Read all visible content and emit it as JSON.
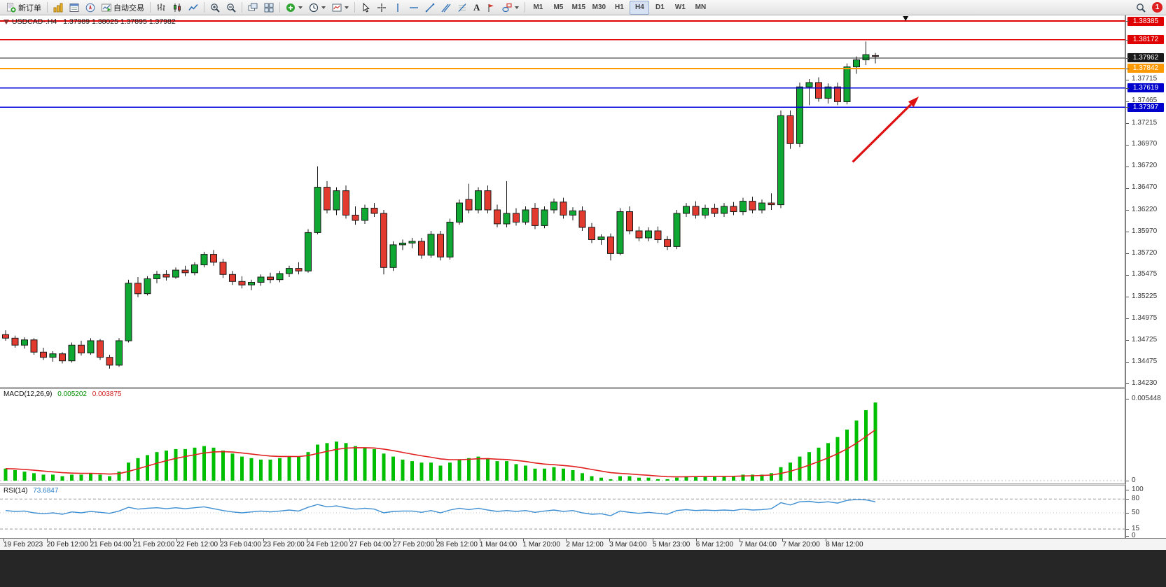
{
  "window": {
    "badge_count": "1"
  },
  "toolbar": {
    "new_order": "新订单",
    "autotrading": "自动交易",
    "text_tool_glyph": "A",
    "timeframes": [
      "M1",
      "M5",
      "M15",
      "M30",
      "H1",
      "H4",
      "D1",
      "W1",
      "MN"
    ],
    "active_timeframe": "H4"
  },
  "colors": {
    "bull": "#0fa832",
    "bear": "#e23a2e",
    "outline": "#1a1a1a",
    "macd_hist": "#00bf00",
    "macd_signal": "#e01f1f",
    "rsi_line": "#3f8fd2",
    "arrow": "#dd1111"
  },
  "chart_data": [
    {
      "type": "candlestick",
      "title": "USDCAD-.H4",
      "ohlc_text": "1.37989 1.38025 1.37895 1.37982",
      "price_axis": {
        "max": 1.3845,
        "min": 1.34191,
        "plain_labels": [
          "1.37715",
          "1.37465",
          "1.37215",
          "1.36970",
          "1.36720",
          "1.36470",
          "1.36220",
          "1.35970",
          "1.35720",
          "1.35475",
          "1.35225",
          "1.34975",
          "1.34725",
          "1.34475",
          "1.34230"
        ]
      },
      "hlines": [
        {
          "price": 1.38385,
          "color": "#e00000",
          "width": 2.2,
          "label": "1.38385",
          "box": "#e00000"
        },
        {
          "price": 1.38172,
          "color": "#e00000",
          "width": 1.4,
          "label": "1.38172",
          "box": "#e00000"
        },
        {
          "price": 1.37962,
          "color": "#222222",
          "width": 1,
          "label": "1.37962",
          "box": "#1a1a1a"
        },
        {
          "price": 1.37842,
          "color": "#ff9900",
          "width": 2,
          "label": "1.37842",
          "box": "#ff9900"
        },
        {
          "price": 1.37619,
          "color": "#0000dd",
          "width": 1.6,
          "label": "1.37619",
          "box": "#0000cc"
        },
        {
          "price": 1.37397,
          "color": "#0000dd",
          "width": 1.6,
          "label": "1.37397",
          "box": "#0000cc"
        }
      ],
      "arrow": {
        "i1": 89.6,
        "p1": 1.3677,
        "i2": 96.6,
        "p2": 1.3752
      },
      "top_marker_index": 95.2,
      "time_labels": [
        "19 Feb 2023",
        "20 Feb 12:00",
        "21 Feb 04:00",
        "21 Feb 20:00",
        "22 Feb 12:00",
        "23 Feb 04:00",
        "23 Feb 20:00",
        "24 Feb 12:00",
        "27 Feb 04:00",
        "27 Feb 20:00",
        "28 Feb 12:00",
        "1 Mar 04:00",
        "1 Mar 20:00",
        "2 Mar 12:00",
        "3 Mar 04:00",
        "5 Mar 23:00",
        "6 Mar 12:00",
        "7 Mar 04:00",
        "7 Mar 20:00",
        "8 Mar 12:00"
      ],
      "candles": [
        [
          1.3479,
          1.3484,
          1.3472,
          1.3475
        ],
        [
          1.3475,
          1.3478,
          1.3464,
          1.3467
        ],
        [
          1.3467,
          1.3476,
          1.3463,
          1.3473
        ],
        [
          1.3473,
          1.3475,
          1.3456,
          1.3459
        ],
        [
          1.3459,
          1.3464,
          1.345,
          1.3453
        ],
        [
          1.3453,
          1.346,
          1.3448,
          1.3457
        ],
        [
          1.3457,
          1.3459,
          1.3446,
          1.3449
        ],
        [
          1.3449,
          1.347,
          1.3447,
          1.3467
        ],
        [
          1.3467,
          1.3472,
          1.3455,
          1.3458
        ],
        [
          1.3458,
          1.3475,
          1.3456,
          1.3472
        ],
        [
          1.3472,
          1.3474,
          1.345,
          1.3453
        ],
        [
          1.3453,
          1.3456,
          1.344,
          1.3444
        ],
        [
          1.3444,
          1.3475,
          1.3442,
          1.3472
        ],
        [
          1.3472,
          1.3542,
          1.347,
          1.3538
        ],
        [
          1.3538,
          1.3545,
          1.3522,
          1.3526
        ],
        [
          1.3526,
          1.3546,
          1.3524,
          1.3543
        ],
        [
          1.3543,
          1.3552,
          1.3538,
          1.3548
        ],
        [
          1.3548,
          1.3553,
          1.3541,
          1.3545
        ],
        [
          1.3545,
          1.3556,
          1.3543,
          1.3553
        ],
        [
          1.3553,
          1.3558,
          1.3546,
          1.355
        ],
        [
          1.355,
          1.3562,
          1.3547,
          1.3559
        ],
        [
          1.3559,
          1.3574,
          1.3556,
          1.3571
        ],
        [
          1.3571,
          1.3576,
          1.3558,
          1.3562
        ],
        [
          1.3562,
          1.3566,
          1.3544,
          1.3548
        ],
        [
          1.3548,
          1.3552,
          1.3536,
          1.354
        ],
        [
          1.354,
          1.3546,
          1.3532,
          1.3536
        ],
        [
          1.3536,
          1.3542,
          1.353,
          1.3539
        ],
        [
          1.3539,
          1.3548,
          1.3535,
          1.3545
        ],
        [
          1.3545,
          1.355,
          1.3538,
          1.3542
        ],
        [
          1.3542,
          1.3552,
          1.3539,
          1.3549
        ],
        [
          1.3549,
          1.3558,
          1.3545,
          1.3555
        ],
        [
          1.3555,
          1.3562,
          1.3548,
          1.3552
        ],
        [
          1.3552,
          1.36,
          1.355,
          1.3596
        ],
        [
          1.3596,
          1.3672,
          1.3594,
          1.3648
        ],
        [
          1.3648,
          1.3655,
          1.3618,
          1.3622
        ],
        [
          1.3622,
          1.3648,
          1.3616,
          1.3644
        ],
        [
          1.3644,
          1.365,
          1.3612,
          1.3616
        ],
        [
          1.3616,
          1.3626,
          1.3605,
          1.361
        ],
        [
          1.361,
          1.3628,
          1.3606,
          1.3624
        ],
        [
          1.3624,
          1.363,
          1.3614,
          1.3618
        ],
        [
          1.3618,
          1.3622,
          1.3548,
          1.3556
        ],
        [
          1.3556,
          1.3586,
          1.3552,
          1.3582
        ],
        [
          1.3582,
          1.3588,
          1.3576,
          1.3584
        ],
        [
          1.3584,
          1.359,
          1.3578,
          1.3586
        ],
        [
          1.3586,
          1.359,
          1.3566,
          1.357
        ],
        [
          1.357,
          1.3598,
          1.3567,
          1.3594
        ],
        [
          1.3594,
          1.3598,
          1.3564,
          1.3568
        ],
        [
          1.3568,
          1.3612,
          1.3565,
          1.3608
        ],
        [
          1.3608,
          1.3634,
          1.3605,
          1.363
        ],
        [
          1.3634,
          1.3652,
          1.3618,
          1.3622
        ],
        [
          1.3622,
          1.3648,
          1.3618,
          1.3644
        ],
        [
          1.3644,
          1.365,
          1.3618,
          1.3622
        ],
        [
          1.3622,
          1.3628,
          1.3602,
          1.3606
        ],
        [
          1.3606,
          1.3655,
          1.3602,
          1.3618
        ],
        [
          1.3618,
          1.3624,
          1.3604,
          1.3608
        ],
        [
          1.3608,
          1.3626,
          1.3605,
          1.3622
        ],
        [
          1.3624,
          1.363,
          1.36,
          1.3604
        ],
        [
          1.3604,
          1.3626,
          1.3601,
          1.3622
        ],
        [
          1.3622,
          1.3635,
          1.3618,
          1.3631
        ],
        [
          1.3631,
          1.3636,
          1.3612,
          1.3616
        ],
        [
          1.3616,
          1.3625,
          1.361,
          1.3621
        ],
        [
          1.3621,
          1.3626,
          1.3598,
          1.3602
        ],
        [
          1.3602,
          1.3607,
          1.3584,
          1.3588
        ],
        [
          1.3588,
          1.3594,
          1.3582,
          1.3591
        ],
        [
          1.3591,
          1.3595,
          1.3564,
          1.3572
        ],
        [
          1.3572,
          1.3624,
          1.357,
          1.362
        ],
        [
          1.362,
          1.3626,
          1.3594,
          1.3598
        ],
        [
          1.3598,
          1.3603,
          1.3586,
          1.359
        ],
        [
          1.359,
          1.3602,
          1.3586,
          1.3598
        ],
        [
          1.3598,
          1.3603,
          1.3584,
          1.3588
        ],
        [
          1.3588,
          1.3592,
          1.3576,
          1.358
        ],
        [
          1.358,
          1.3622,
          1.3577,
          1.3618
        ],
        [
          1.3618,
          1.363,
          1.3614,
          1.3626
        ],
        [
          1.3626,
          1.3632,
          1.3612,
          1.3616
        ],
        [
          1.3616,
          1.3628,
          1.3612,
          1.3624
        ],
        [
          1.3624,
          1.3629,
          1.3614,
          1.3618
        ],
        [
          1.3618,
          1.363,
          1.3614,
          1.3626
        ],
        [
          1.3626,
          1.3631,
          1.3616,
          1.362
        ],
        [
          1.362,
          1.3636,
          1.3616,
          1.3632
        ],
        [
          1.3632,
          1.3637,
          1.3618,
          1.3622
        ],
        [
          1.3622,
          1.3634,
          1.3618,
          1.363
        ],
        [
          1.363,
          1.3641,
          1.3622,
          1.3628
        ],
        [
          1.3628,
          1.3736,
          1.3624,
          1.373
        ],
        [
          1.373,
          1.3736,
          1.3692,
          1.3698
        ],
        [
          1.3698,
          1.3768,
          1.3694,
          1.3763
        ],
        [
          1.3763,
          1.3772,
          1.3742,
          1.3768
        ],
        [
          1.3768,
          1.3774,
          1.3746,
          1.375
        ],
        [
          1.375,
          1.3767,
          1.3744,
          1.3763
        ],
        [
          1.3763,
          1.3768,
          1.3742,
          1.3746
        ],
        [
          1.3746,
          1.379,
          1.3743,
          1.3786
        ],
        [
          1.3786,
          1.3798,
          1.3778,
          1.3794
        ],
        [
          1.3794,
          1.3815,
          1.3788,
          1.38
        ],
        [
          1.3799,
          1.3802,
          1.379,
          1.3798
        ]
      ]
    },
    {
      "type": "bar",
      "label": "MACD(12,26,9)",
      "value_main": "0.005202",
      "value_signal": "0.003875",
      "ymax": 0.005448,
      "axis_labels": [
        {
          "v": 0.005448,
          "t": "0.005448"
        },
        {
          "v": 0,
          "t": "0"
        }
      ],
      "signal_k": 0.2,
      "histogram": [
        0.0008,
        0.0007,
        0.0006,
        0.0005,
        0.0004,
        0.0004,
        0.0003,
        0.0004,
        0.0004,
        0.0005,
        0.0004,
        0.0003,
        0.0006,
        0.0012,
        0.0015,
        0.0017,
        0.0019,
        0.002,
        0.0021,
        0.0021,
        0.0022,
        0.0023,
        0.0022,
        0.002,
        0.0018,
        0.0016,
        0.0015,
        0.0014,
        0.0014,
        0.0015,
        0.0016,
        0.0016,
        0.0019,
        0.0024,
        0.0025,
        0.0026,
        0.0025,
        0.0023,
        0.0022,
        0.0021,
        0.0018,
        0.0016,
        0.0014,
        0.0013,
        0.0012,
        0.0012,
        0.001,
        0.0012,
        0.0014,
        0.0015,
        0.0016,
        0.0015,
        0.0013,
        0.0013,
        0.0011,
        0.001,
        0.0008,
        0.0008,
        0.0009,
        0.0008,
        0.0007,
        0.0005,
        0.0003,
        0.0002,
        0.0001,
        0.0003,
        0.0003,
        0.0002,
        0.0002,
        0.0001,
        0.0001,
        0.0002,
        0.0003,
        0.0003,
        0.0003,
        0.0003,
        0.0003,
        0.0003,
        0.0004,
        0.0004,
        0.0004,
        0.0005,
        0.0009,
        0.0012,
        0.0016,
        0.0019,
        0.0022,
        0.0025,
        0.0029,
        0.0034,
        0.004,
        0.0047,
        0.0052
      ]
    },
    {
      "type": "line",
      "label": "RSI(14)",
      "value": "73.6847",
      "range": [
        0,
        100
      ],
      "axis_labels": [
        {
          "v": 100,
          "t": "100"
        },
        {
          "v": 80,
          "t": "80"
        },
        {
          "v": 50,
          "t": "50"
        },
        {
          "v": 15,
          "t": "15"
        },
        {
          "v": 0,
          "t": "0"
        }
      ],
      "levels_dashed": [
        80,
        15
      ],
      "levels_dotted": [
        50
      ],
      "values": [
        55,
        53,
        54,
        50,
        48,
        50,
        47,
        52,
        50,
        53,
        51,
        49,
        54,
        62,
        58,
        60,
        61,
        59,
        61,
        59,
        61,
        63,
        59,
        55,
        52,
        50,
        52,
        54,
        52,
        54,
        56,
        54,
        62,
        68,
        63,
        65,
        61,
        58,
        60,
        58,
        50,
        53,
        54,
        54,
        51,
        55,
        50,
        56,
        60,
        57,
        60,
        56,
        53,
        55,
        53,
        55,
        51,
        54,
        56,
        53,
        55,
        50,
        47,
        48,
        44,
        54,
        51,
        49,
        51,
        49,
        47,
        55,
        57,
        55,
        56,
        55,
        56,
        55,
        58,
        56,
        57,
        59,
        72,
        67,
        74,
        75,
        72,
        74,
        71,
        77,
        79,
        78,
        74
      ]
    }
  ]
}
